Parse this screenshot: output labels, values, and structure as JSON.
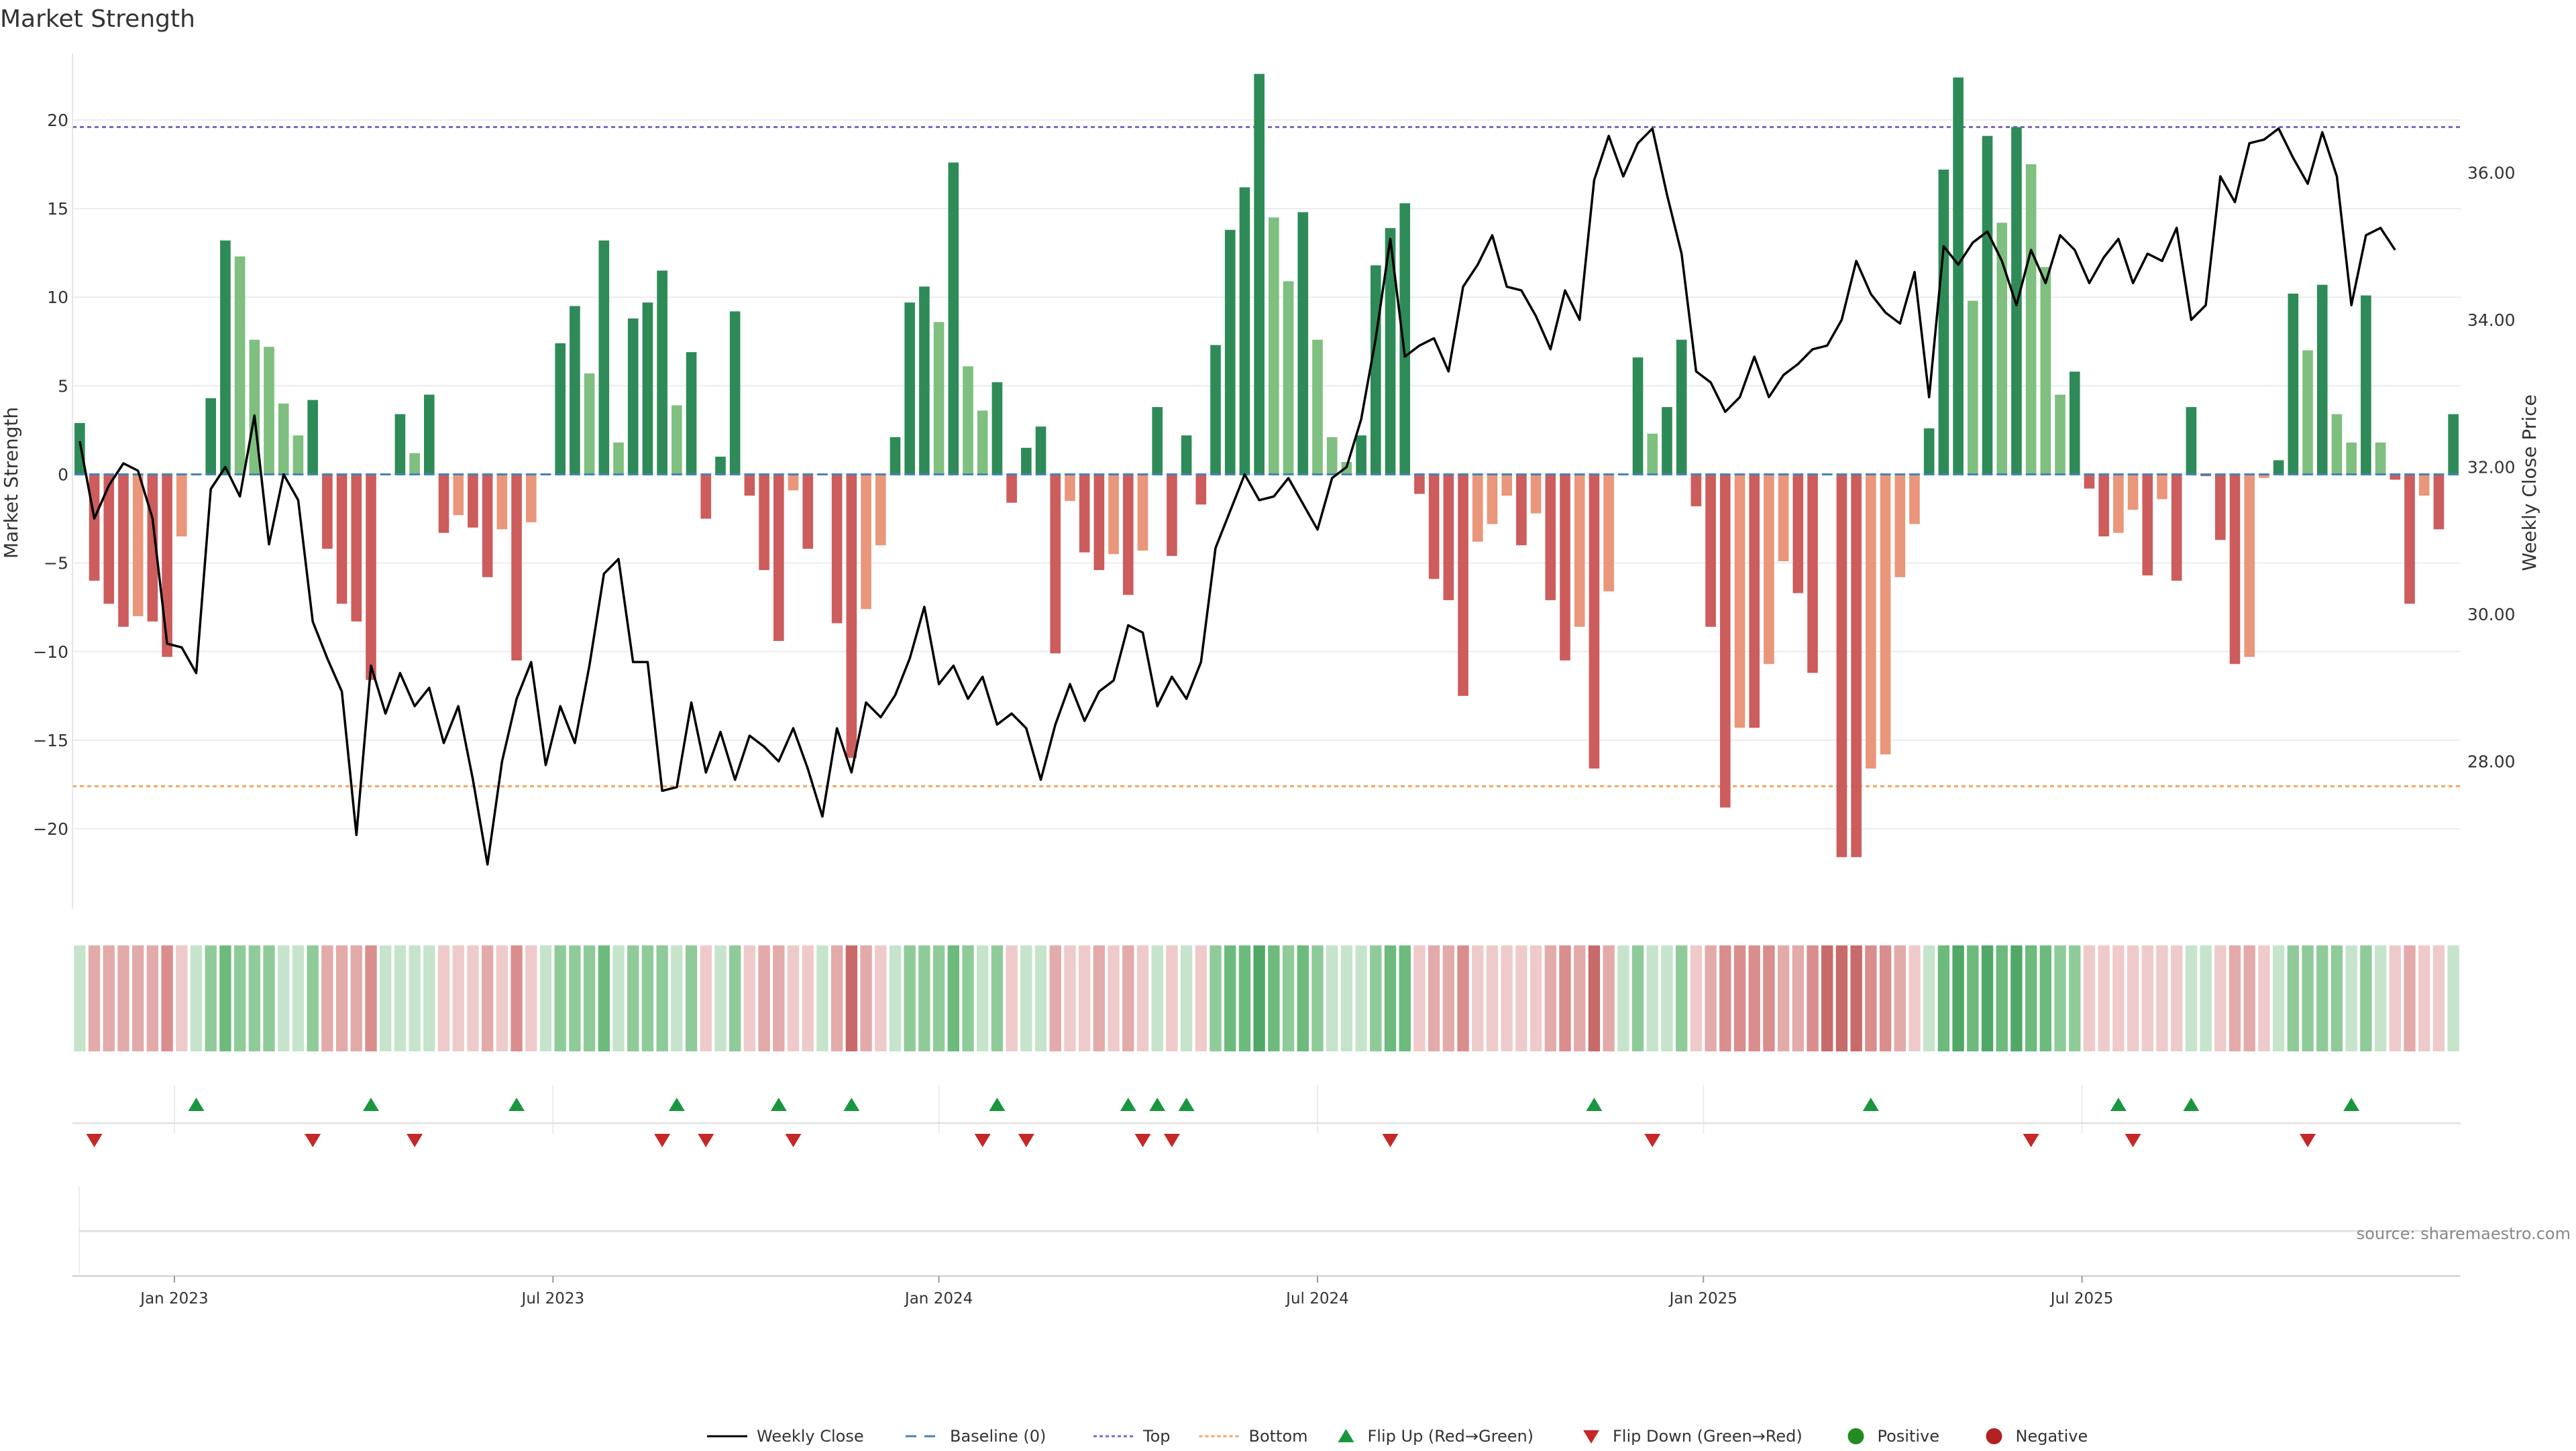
{
  "chart_data": {
    "type": "bar+line",
    "title": "Market Strength",
    "ylabel_left": "Market Strength",
    "ylabel_right": "Weekly Close Price",
    "ylim_left": [
      -24.5,
      24.5
    ],
    "ylim_right": [
      26.0,
      37.8
    ],
    "yticks_left": [
      -20,
      -15,
      -10,
      -5,
      0,
      5,
      10,
      15,
      20
    ],
    "yticks_right": [
      "28.00",
      "30.00",
      "32.00",
      "34.00",
      "36.00"
    ],
    "top_line": 19.6,
    "bottom_line": -17.6,
    "x_ticks": [
      {
        "label": "Jan 2023",
        "index": 6.5
      },
      {
        "label": "Jul 2023",
        "index": 32.5
      },
      {
        "label": "Jan 2024",
        "index": 59
      },
      {
        "label": "Jul 2024",
        "index": 85
      },
      {
        "label": "Jan 2025",
        "index": 111.5
      },
      {
        "label": "Jul 2025",
        "index": 137.5
      }
    ],
    "strength": [
      2.9,
      -6.0,
      -7.3,
      -8.6,
      -8.0,
      -8.3,
      -10.3,
      -3.5,
      0,
      4.3,
      13.2,
      12.3,
      7.6,
      7.2,
      4.0,
      2.2,
      4.2,
      -4.2,
      -7.3,
      -8.3,
      -11.6,
      0,
      3.4,
      1.2,
      4.5,
      -3.3,
      -2.3,
      -3.0,
      -5.8,
      -3.1,
      -10.5,
      -2.7,
      0,
      7.4,
      9.5,
      5.7,
      13.2,
      1.8,
      8.8,
      9.7,
      11.5,
      3.9,
      6.9,
      -2.5,
      1.0,
      9.2,
      -1.2,
      -5.4,
      -9.4,
      -0.9,
      -4.2,
      0,
      -8.4,
      -16.0,
      -7.6,
      -4.0,
      2.1,
      9.7,
      10.6,
      8.6,
      17.6,
      6.1,
      3.6,
      5.2,
      -1.6,
      1.5,
      2.7,
      -10.1,
      -1.5,
      -4.4,
      -5.4,
      -4.5,
      -6.8,
      -4.3,
      3.8,
      -4.6,
      2.2,
      -1.7,
      7.3,
      13.8,
      16.2,
      22.6,
      14.5,
      10.9,
      14.8,
      7.6,
      2.1,
      0.7,
      2.2,
      11.8,
      13.9,
      15.3,
      -1.1,
      -5.9,
      -7.1,
      -12.5,
      -3.8,
      -2.8,
      -1.2,
      -4.0,
      -2.2,
      -7.1,
      -10.5,
      -8.6,
      -16.6,
      -6.6,
      0,
      6.6,
      2.3,
      3.8,
      7.6,
      -1.8,
      -8.6,
      -18.8,
      -14.3,
      -14.3,
      -10.7,
      -4.9,
      -6.7,
      -11.2,
      0,
      -21.6,
      -21.6,
      -16.6,
      -15.8,
      -5.8,
      -2.8,
      2.6,
      17.2,
      22.4,
      9.8,
      19.1,
      14.2,
      19.6,
      17.5,
      11.7,
      4.5,
      5.8,
      -0.8,
      -3.5,
      -3.3,
      -2.0,
      -5.7,
      -1.4,
      -6.0,
      3.8,
      -0.1,
      -3.7,
      -10.7,
      -10.3,
      -0.2,
      0.8,
      10.2,
      7.0,
      10.7,
      3.4,
      1.8,
      10.1,
      1.8,
      -0.3,
      -7.3,
      -1.2,
      -3.1,
      3.4
    ],
    "close": [
      32.35,
      31.3,
      31.75,
      32.05,
      31.95,
      31.3,
      29.6,
      29.55,
      29.2,
      31.7,
      32.0,
      31.6,
      32.7,
      30.95,
      31.9,
      31.55,
      29.9,
      29.4,
      28.95,
      27.0,
      29.3,
      28.65,
      29.2,
      28.75,
      29.0,
      28.25,
      28.75,
      27.75,
      26.6,
      28.0,
      28.85,
      29.35,
      27.95,
      28.75,
      28.25,
      29.3,
      30.55,
      30.75,
      29.35,
      29.35,
      27.6,
      27.65,
      28.8,
      27.85,
      28.4,
      27.75,
      28.35,
      28.2,
      28.0,
      28.45,
      27.9,
      27.25,
      28.45,
      27.85,
      28.8,
      28.6,
      28.9,
      29.4,
      30.1,
      29.05,
      29.3,
      28.85,
      29.15,
      28.5,
      28.65,
      28.45,
      27.75,
      28.5,
      29.05,
      28.55,
      28.95,
      29.1,
      29.85,
      29.75,
      28.75,
      29.15,
      28.85,
      29.35,
      30.9,
      31.4,
      31.9,
      31.55,
      31.6,
      31.85,
      31.5,
      31.15,
      31.85,
      32.0,
      32.65,
      33.75,
      35.1,
      33.5,
      33.65,
      33.75,
      33.3,
      34.45,
      34.75,
      35.15,
      34.45,
      34.4,
      34.05,
      33.6,
      34.4,
      34.0,
      35.9,
      36.5,
      35.95,
      36.4,
      36.6,
      35.7,
      34.9,
      33.3,
      33.15,
      32.75,
      32.95,
      33.5,
      32.95,
      33.25,
      33.4,
      33.6,
      33.65,
      34.0,
      34.8,
      34.35,
      34.1,
      33.95,
      34.65,
      32.95,
      35.0,
      34.75,
      35.05,
      35.2,
      34.8,
      34.2,
      34.95,
      34.5,
      35.15,
      34.95,
      34.5,
      34.85,
      35.1,
      34.5,
      34.9,
      34.8,
      35.25,
      34.0,
      34.2,
      35.95,
      35.6,
      36.4,
      36.45,
      36.6,
      36.2,
      35.85,
      36.55,
      35.95,
      34.2,
      35.15,
      35.25,
      34.95
    ],
    "heat_states": [
      "G1",
      "R2",
      "R2",
      "R2",
      "R2",
      "R2",
      "R3",
      "R1",
      "G1",
      "G2",
      "G3",
      "G2",
      "G2",
      "G2",
      "G1",
      "G1",
      "G2",
      "R2",
      "R2",
      "R2",
      "R3",
      "G1",
      "G1",
      "G1",
      "G1",
      "R1",
      "R1",
      "R1",
      "R2",
      "R1",
      "R3",
      "R1",
      "G1",
      "G2",
      "G2",
      "G2",
      "G3",
      "G1",
      "G2",
      "G2",
      "G2",
      "G1",
      "G2",
      "R1",
      "G1",
      "G2",
      "R1",
      "R2",
      "R2",
      "R1",
      "R1",
      "G1",
      "R2",
      "R4",
      "R2",
      "R1",
      "G1",
      "G2",
      "G2",
      "G2",
      "G3",
      "G2",
      "G1",
      "G2",
      "R1",
      "G1",
      "G1",
      "R2",
      "R1",
      "R1",
      "R2",
      "R1",
      "R2",
      "R1",
      "G1",
      "R1",
      "G1",
      "R1",
      "G2",
      "G3",
      "G3",
      "G4",
      "G3",
      "G2",
      "G3",
      "G2",
      "G1",
      "G1",
      "G1",
      "G2",
      "G3",
      "G3",
      "R1",
      "R2",
      "R2",
      "R3",
      "R1",
      "R1",
      "R1",
      "R1",
      "R1",
      "R2",
      "R3",
      "R2",
      "R4",
      "R2",
      "G1",
      "G2",
      "G1",
      "G1",
      "G2",
      "R1",
      "R2",
      "R3",
      "R3",
      "R3",
      "R3",
      "R2",
      "R2",
      "R3",
      "R4",
      "R4",
      "R4",
      "R3",
      "R3",
      "R2",
      "R1",
      "G1",
      "G3",
      "G4",
      "G3",
      "G4",
      "G3",
      "G4",
      "G3",
      "G3",
      "G2",
      "G2",
      "R1",
      "R1",
      "R1",
      "R1",
      "R1",
      "R1",
      "R1",
      "G1",
      "G1",
      "R1",
      "R2",
      "R2",
      "R1",
      "G1",
      "G2",
      "G2",
      "G2",
      "G2",
      "G1",
      "G2",
      "G1",
      "R1",
      "R2",
      "R1",
      "R1",
      "G1"
    ],
    "flip_up": [
      8,
      20,
      30,
      41,
      48,
      53,
      63,
      72,
      74,
      76,
      104,
      123,
      140,
      145,
      156
    ],
    "flip_down": [
      1,
      16,
      23,
      40,
      43,
      49,
      62,
      65,
      73,
      75,
      90,
      108,
      134,
      141,
      153
    ],
    "legend": [
      "Weekly Close",
      "Baseline (0)",
      "Top",
      "Bottom",
      "Flip Up (Red→Green)",
      "Flip Down (Green→Red)",
      "Positive",
      "Negative"
    ],
    "legend_placement": "bottom-center",
    "source_text": "source: sharemaestro.com"
  },
  "colors": {
    "green_dark": "#2e8b57",
    "green_light": "#7fbf7f",
    "red_dark": "#cd5c5c",
    "red_light": "#e9967a",
    "top_line": "#7b68c8",
    "bottom_line": "#f4a460",
    "baseline": "#4682b4",
    "flip_up": "#1a9641",
    "flip_down": "#c62828",
    "positive_dot": "#228b22",
    "negative_dot": "#b22222",
    "heat": {
      "G1": "#c5e4cb",
      "G2": "#8fcb99",
      "G3": "#6cba7c",
      "G4": "#4fa865",
      "R1": "#efcaca",
      "R2": "#e3aaaa",
      "R3": "#d98d8d",
      "R4": "#c86a6a"
    }
  }
}
